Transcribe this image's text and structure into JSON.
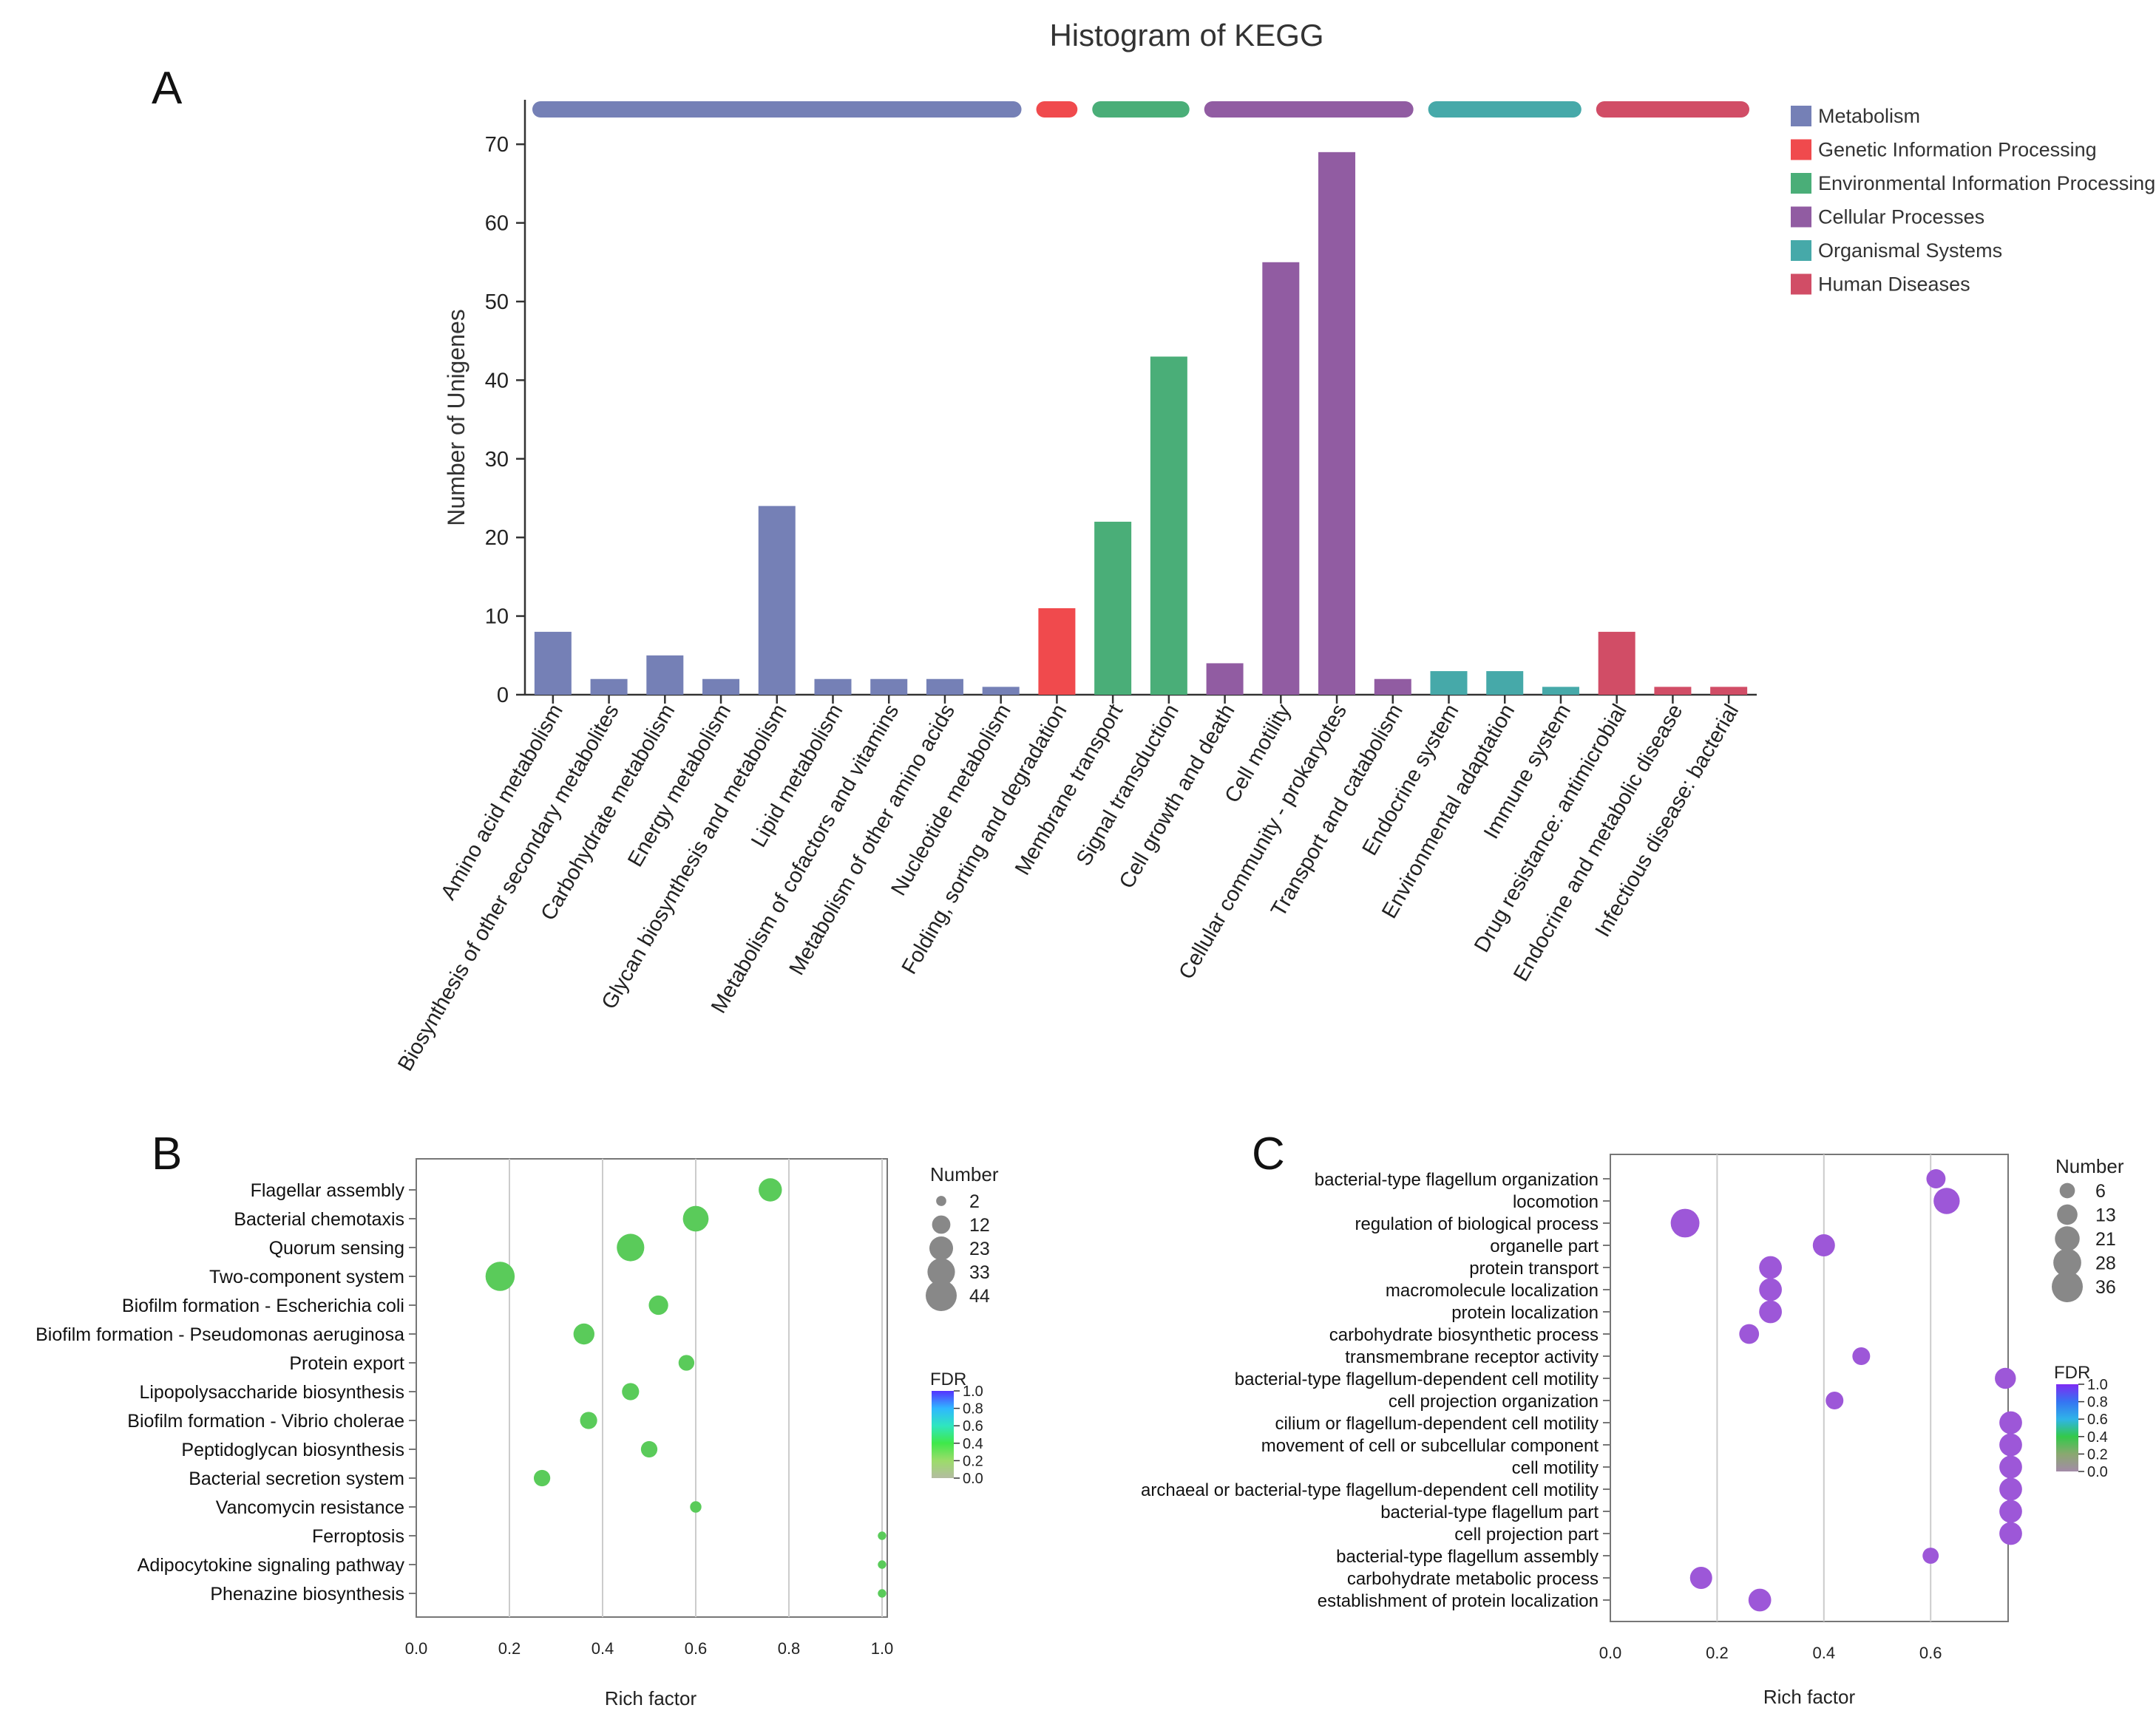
{
  "panel_letters": {
    "a": "A",
    "b": "B",
    "c": "C"
  },
  "colors": {
    "Metabolism": "#7580b6",
    "Genetic Information Processing": "#f04a4d",
    "Environmental Information Processing": "#4aae78",
    "Cellular Processes": "#915ca2",
    "Organismal Systems": "#46a9a9",
    "Human Diseases": "#d14d66",
    "bubble_b": "#5acb5a",
    "bubble_c": "#9d57d8",
    "grid": "#cccccc",
    "axis": "#333333"
  },
  "chart_data": [
    {
      "id": "A",
      "type": "bar",
      "title": "Histogram of KEGG",
      "xlabel": "",
      "ylabel": "Number of Unigenes",
      "ylim": [
        0,
        75
      ],
      "yticks": [
        0,
        10,
        20,
        30,
        40,
        50,
        60,
        70
      ],
      "grid": false,
      "legend_position": "top-right",
      "groups": [
        "Metabolism",
        "Genetic Information Processing",
        "Environmental Information Processing",
        "Cellular Processes",
        "Organismal Systems",
        "Human Diseases"
      ],
      "categories": [
        "Amino acid metabolism",
        "Biosynthesis of other secondary metabolites",
        "Carbohydrate metabolism",
        "Energy metabolism",
        "Glycan biosynthesis and metabolism",
        "Lipid metabolism",
        "Metabolism of cofactors and vitamins",
        "Metabolism of other amino acids",
        "Nucleotide metabolism",
        "Folding, sorting and degradation",
        "Membrane transport",
        "Signal transduction",
        "Cell growth and death",
        "Cell motility",
        "Cellular community - prokaryotes",
        "Transport and catabolism",
        "Endocrine system",
        "Environmental adaptation",
        "Immune system",
        "Drug resistance: antimicrobial",
        "Endocrine and metabolic disease",
        "Infectious disease: bacterial"
      ],
      "category_group": [
        "Metabolism",
        "Metabolism",
        "Metabolism",
        "Metabolism",
        "Metabolism",
        "Metabolism",
        "Metabolism",
        "Metabolism",
        "Metabolism",
        "Genetic Information Processing",
        "Environmental Information Processing",
        "Environmental Information Processing",
        "Cellular Processes",
        "Cellular Processes",
        "Cellular Processes",
        "Cellular Processes",
        "Organismal Systems",
        "Organismal Systems",
        "Organismal Systems",
        "Human Diseases",
        "Human Diseases",
        "Human Diseases"
      ],
      "values": [
        8,
        2,
        5,
        2,
        24,
        2,
        2,
        2,
        1,
        11,
        22,
        43,
        4,
        55,
        69,
        2,
        3,
        3,
        1,
        8,
        1,
        1
      ]
    },
    {
      "id": "B",
      "type": "scatter",
      "title": "",
      "xlabel": "Rich factor",
      "ylabel": "",
      "xlim": [
        0,
        1
      ],
      "xticks": [
        0.0,
        0.2,
        0.4,
        0.6,
        0.8,
        1.0
      ],
      "xtick_labels": [
        "0.0",
        "0.2",
        "0.4",
        "0.6",
        "0.8",
        "1.0"
      ],
      "grid": true,
      "size_legend_title": "Number",
      "size_legend": [
        2,
        12,
        23,
        33,
        44
      ],
      "color_legend_title": "FDR",
      "color_legend_ticks": [
        "1.0",
        "0.8",
        "0.6",
        "0.4",
        "0.2",
        "0.0"
      ],
      "color_legend_colors": [
        "#5432ff",
        "#2fb7ff",
        "#2fe6bf",
        "#3fe84a",
        "#9cdc6a",
        "#b3bca1"
      ],
      "terms": [
        {
          "label": "Flagellar assembly",
          "x": 0.76,
          "number": 22
        },
        {
          "label": "Bacterial chemotaxis",
          "x": 0.6,
          "number": 28
        },
        {
          "label": "Quorum sensing",
          "x": 0.46,
          "number": 33
        },
        {
          "label": "Two-component system",
          "x": 0.18,
          "number": 38
        },
        {
          "label": "Biofilm formation - Escherichia coli",
          "x": 0.52,
          "number": 14
        },
        {
          "label": "Biofilm formation - Pseudomonas aeruginosa",
          "x": 0.36,
          "number": 17
        },
        {
          "label": "Protein export",
          "x": 0.58,
          "number": 8
        },
        {
          "label": "Lipopolysaccharide biosynthesis",
          "x": 0.46,
          "number": 10
        },
        {
          "label": "Biofilm formation - Vibrio cholerae",
          "x": 0.37,
          "number": 10
        },
        {
          "label": "Peptidoglycan biosynthesis",
          "x": 0.5,
          "number": 9
        },
        {
          "label": "Bacterial secretion system",
          "x": 0.27,
          "number": 9
        },
        {
          "label": "Vancomycin resistance",
          "x": 0.6,
          "number": 3
        },
        {
          "label": "Ferroptosis",
          "x": 1.0,
          "number": 1
        },
        {
          "label": "Adipocytokine signaling pathway",
          "x": 1.0,
          "number": 1
        },
        {
          "label": "Phenazine biosynthesis",
          "x": 1.0,
          "number": 1
        }
      ]
    },
    {
      "id": "C",
      "type": "scatter",
      "title": "",
      "xlabel": "Rich factor",
      "ylabel": "",
      "xlim": [
        0,
        0.75
      ],
      "xticks": [
        0.0,
        0.2,
        0.4,
        0.6
      ],
      "xtick_labels": [
        "0.0",
        "0.2",
        "0.4",
        "0.6"
      ],
      "grid": true,
      "size_legend_title": "Number",
      "size_legend": [
        6,
        13,
        21,
        28,
        36
      ],
      "color_legend_title": "FDR",
      "color_legend_ticks": [
        "1.0",
        "0.8",
        "0.6",
        "0.4",
        "0.2",
        "0.0"
      ],
      "color_legend_colors": [
        "#7e2bf3",
        "#3574f2",
        "#2fb4e8",
        "#33c94a",
        "#8aa870",
        "#a38ba8"
      ],
      "terms": [
        {
          "label": "bacterial-type flagellum organization",
          "x": 0.61,
          "number": 11
        },
        {
          "label": "locomotion",
          "x": 0.63,
          "number": 24
        },
        {
          "label": "regulation of biological process",
          "x": 0.14,
          "number": 30
        },
        {
          "label": "organelle part",
          "x": 0.4,
          "number": 16
        },
        {
          "label": "protein transport",
          "x": 0.3,
          "number": 17
        },
        {
          "label": "macromolecule localization",
          "x": 0.3,
          "number": 17
        },
        {
          "label": "protein localization",
          "x": 0.3,
          "number": 17
        },
        {
          "label": "carbohydrate biosynthetic process",
          "x": 0.26,
          "number": 12
        },
        {
          "label": "transmembrane receptor activity",
          "x": 0.47,
          "number": 9
        },
        {
          "label": "bacterial-type flagellum-dependent cell motility",
          "x": 0.74,
          "number": 14
        },
        {
          "label": "cell projection organization",
          "x": 0.42,
          "number": 9
        },
        {
          "label": "cilium or flagellum-dependent cell motility",
          "x": 0.75,
          "number": 17
        },
        {
          "label": "movement of cell or subcellular component",
          "x": 0.75,
          "number": 17
        },
        {
          "label": "cell motility",
          "x": 0.75,
          "number": 17
        },
        {
          "label": "archaeal or bacterial-type flagellum-dependent cell motility",
          "x": 0.75,
          "number": 17
        },
        {
          "label": "bacterial-type flagellum part",
          "x": 0.75,
          "number": 17
        },
        {
          "label": "cell projection part",
          "x": 0.75,
          "number": 17
        },
        {
          "label": "bacterial-type flagellum assembly",
          "x": 0.6,
          "number": 7
        },
        {
          "label": "carbohydrate metabolic process",
          "x": 0.17,
          "number": 16
        },
        {
          "label": "establishment of protein localization",
          "x": 0.28,
          "number": 17
        }
      ]
    }
  ]
}
